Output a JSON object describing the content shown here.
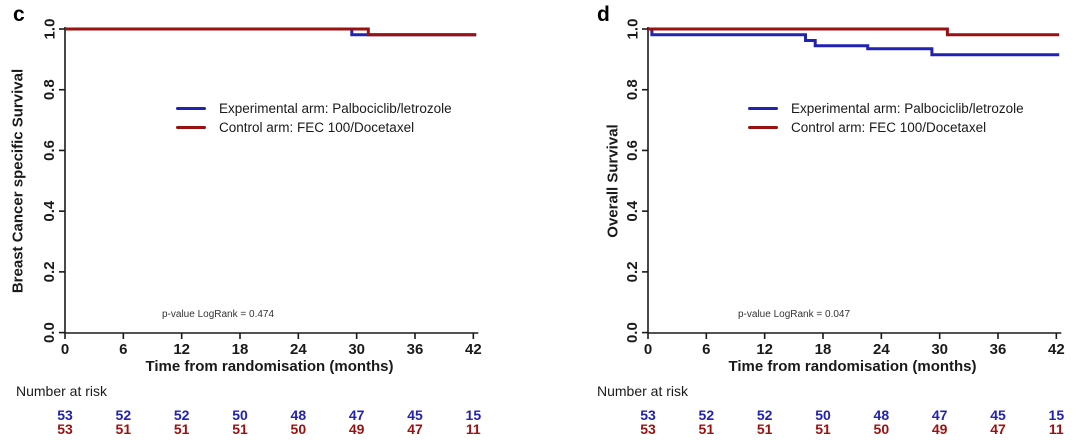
{
  "chart_data": [
    {
      "type": "line",
      "subtype": "kaplan-meier-step",
      "panel": "c",
      "ylabel": "Breast Cancer specific Survival",
      "xlabel": "Time from randomisation (months)",
      "annotation": "p-value LogRank = 0.474",
      "xlim": [
        0,
        42
      ],
      "ylim": [
        0.0,
        1.0
      ],
      "xticks": [
        0,
        6,
        12,
        18,
        24,
        30,
        36,
        42
      ],
      "yticks": [
        "0.0",
        "0.2",
        "0.4",
        "0.6",
        "0.8",
        "1.0"
      ],
      "grid": false,
      "legend_position": "center-left",
      "series": [
        {
          "name": "Experimental arm: Palbociclib/letrozole",
          "color": "#2222b2",
          "steps": [
            [
              0,
              1.0
            ],
            [
              29.5,
              1.0
            ],
            [
              29.5,
              0.981
            ],
            [
              42.3,
              0.981
            ]
          ]
        },
        {
          "name": "Control arm: FEC 100/Docetaxel",
          "color": "#991111",
          "steps": [
            [
              0,
              1.0
            ],
            [
              31.2,
              1.0
            ],
            [
              31.2,
              0.981
            ],
            [
              42.3,
              0.981
            ]
          ]
        }
      ],
      "number_at_risk": {
        "label": "Number at risk",
        "times": [
          0,
          6,
          12,
          18,
          24,
          30,
          36,
          42
        ],
        "rows": [
          {
            "name": "Experimental arm",
            "color": "#2222b2",
            "values": [
              53,
              52,
              52,
              50,
              48,
              47,
              45,
              15
            ]
          },
          {
            "name": "Control arm",
            "color": "#991111",
            "values": [
              53,
              51,
              51,
              51,
              50,
              49,
              47,
              11
            ]
          }
        ]
      }
    },
    {
      "type": "line",
      "subtype": "kaplan-meier-step",
      "panel": "d",
      "ylabel": "Overall Survival",
      "xlabel": "Time from randomisation (months)",
      "annotation": "p-value LogRank = 0.047",
      "xlim": [
        0,
        42
      ],
      "ylim": [
        0.0,
        1.0
      ],
      "xticks": [
        0,
        6,
        12,
        18,
        24,
        30,
        36,
        42
      ],
      "yticks": [
        "0.0",
        "0.2",
        "0.4",
        "0.6",
        "0.8",
        "1.0"
      ],
      "grid": false,
      "legend_position": "center-left",
      "series": [
        {
          "name": "Experimental arm: Palbociclib/letrozole",
          "color": "#2222b2",
          "steps": [
            [
              0,
              1.0
            ],
            [
              0.4,
              1.0
            ],
            [
              0.4,
              0.981
            ],
            [
              16.2,
              0.981
            ],
            [
              16.2,
              0.962
            ],
            [
              17.2,
              0.962
            ],
            [
              17.2,
              0.945
            ],
            [
              22.6,
              0.945
            ],
            [
              22.6,
              0.935
            ],
            [
              29.2,
              0.935
            ],
            [
              29.2,
              0.915
            ],
            [
              42.3,
              0.915
            ]
          ]
        },
        {
          "name": "Control arm: FEC 100/Docetaxel",
          "color": "#991111",
          "steps": [
            [
              0,
              1.0
            ],
            [
              30.8,
              1.0
            ],
            [
              30.8,
              0.981
            ],
            [
              42.3,
              0.981
            ]
          ]
        }
      ],
      "number_at_risk": {
        "label": "Number at risk",
        "times": [
          0,
          6,
          12,
          18,
          24,
          30,
          36,
          42
        ],
        "rows": [
          {
            "name": "Experimental arm",
            "color": "#2222b2",
            "values": [
              53,
              52,
              52,
              50,
              48,
              47,
              45,
              15
            ]
          },
          {
            "name": "Control arm",
            "color": "#991111",
            "values": [
              53,
              51,
              51,
              51,
              50,
              49,
              47,
              11
            ]
          }
        ]
      }
    }
  ]
}
